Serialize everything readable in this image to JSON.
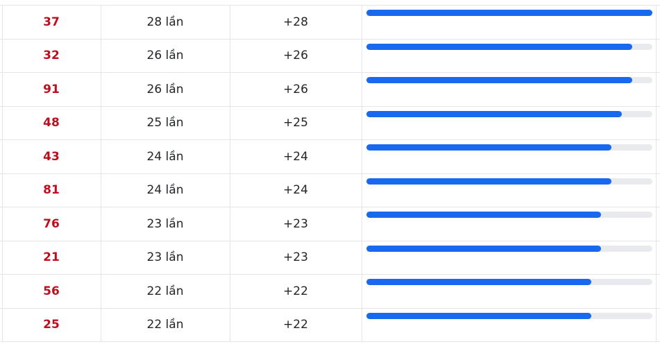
{
  "table": {
    "unit_suffix": "lần",
    "max_count": 28,
    "rows": [
      {
        "number": "37",
        "count": "28 lần",
        "delta": "+28",
        "value": 28
      },
      {
        "number": "32",
        "count": "26 lần",
        "delta": "+26",
        "value": 26
      },
      {
        "number": "91",
        "count": "26 lần",
        "delta": "+26",
        "value": 26
      },
      {
        "number": "48",
        "count": "25 lần",
        "delta": "+25",
        "value": 25
      },
      {
        "number": "43",
        "count": "24 lần",
        "delta": "+24",
        "value": 24
      },
      {
        "number": "81",
        "count": "24 lần",
        "delta": "+24",
        "value": 24
      },
      {
        "number": "76",
        "count": "23 lần",
        "delta": "+23",
        "value": 23
      },
      {
        "number": "21",
        "count": "23 lần",
        "delta": "+23",
        "value": 23
      },
      {
        "number": "56",
        "count": "22 lần",
        "delta": "+22",
        "value": 22
      },
      {
        "number": "25",
        "count": "22 lần",
        "delta": "+22",
        "value": 22
      }
    ]
  },
  "colors": {
    "number_red": "#c00d1e",
    "text_dark": "#212529",
    "bar_blue": "#1969f0",
    "bar_track_gray": "#e8eaed",
    "border_gray": "#e4e4e4"
  },
  "chart_data": {
    "type": "bar",
    "orientation": "horizontal",
    "categories": [
      "37",
      "32",
      "91",
      "48",
      "43",
      "81",
      "76",
      "21",
      "56",
      "25"
    ],
    "values": [
      28,
      26,
      26,
      25,
      24,
      24,
      23,
      23,
      22,
      22
    ],
    "value_labels": [
      "28 lần",
      "26 lần",
      "26 lần",
      "25 lần",
      "24 lần",
      "24 lần",
      "23 lần",
      "23 lần",
      "22 lần",
      "22 lần"
    ],
    "delta_labels": [
      "+28",
      "+26",
      "+26",
      "+25",
      "+24",
      "+24",
      "+23",
      "+23",
      "+22",
      "+22"
    ],
    "title": "",
    "xlabel": "",
    "ylabel": "",
    "xlim": [
      0,
      28
    ],
    "grid": false,
    "legend": false
  }
}
